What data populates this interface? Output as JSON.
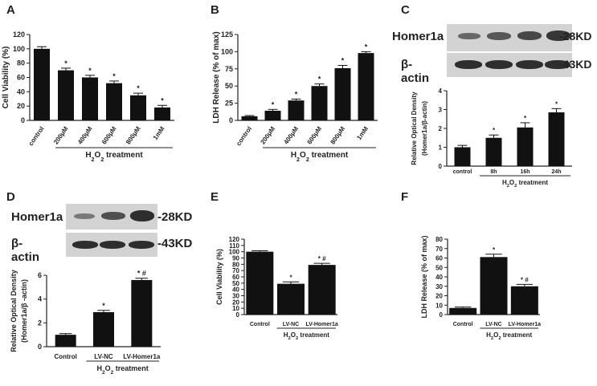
{
  "panels": {
    "A": "A",
    "B": "B",
    "C": "C",
    "D": "D",
    "E": "E",
    "F": "F"
  },
  "blots": {
    "C": {
      "protein": "Homer1a",
      "loading": "β-actin",
      "protein_kd": "-28KD",
      "loading_kd": "-43KD"
    },
    "D": {
      "protein": "Homer1a",
      "loading": "β-actin",
      "protein_kd": "-28KD",
      "loading_kd": "-43KD"
    }
  },
  "chart_data": [
    {
      "id": "A",
      "type": "bar",
      "ylabel": "Cell Viability (%)",
      "ylim": [
        0,
        120
      ],
      "yticks": [
        0,
        20,
        40,
        60,
        80,
        100,
        120
      ],
      "categories": [
        "control",
        "200μM",
        "400μM",
        "600μM",
        "800μM",
        "1mM"
      ],
      "values": [
        100,
        70,
        60,
        52,
        35,
        18
      ],
      "errors": [
        3,
        3,
        3,
        3,
        3,
        3
      ],
      "marks": [
        "",
        "*",
        "*",
        "*",
        "*",
        "*"
      ],
      "group_label": "H2O2 treatment",
      "group_from": 1,
      "group_to": 5,
      "rotated": true
    },
    {
      "id": "B",
      "type": "bar",
      "ylabel": "LDH Release (% of max)",
      "ylim": [
        0,
        125
      ],
      "yticks": [
        0,
        25,
        50,
        75,
        100,
        125
      ],
      "categories": [
        "control",
        "200μM",
        "400μM",
        "600μM",
        "800μM",
        "1mM"
      ],
      "values": [
        6,
        14,
        29,
        50,
        76,
        98
      ],
      "errors": [
        1,
        2,
        2,
        3,
        4,
        2
      ],
      "marks": [
        "",
        "*",
        "*",
        "*",
        "*",
        "*"
      ],
      "group_label": "H2O2 treatment",
      "group_from": 1,
      "group_to": 5,
      "rotated": true
    },
    {
      "id": "C",
      "type": "bar",
      "ylabel": "Relative Optical Density",
      "ylabel2": "(Homer1a/β-actin)",
      "ylim": [
        0,
        4
      ],
      "yticks": [
        0,
        1,
        2,
        3,
        4
      ],
      "categories": [
        "control",
        "8h",
        "16h",
        "24h"
      ],
      "values": [
        1.0,
        1.5,
        2.05,
        2.85
      ],
      "errors": [
        0.1,
        0.15,
        0.25,
        0.2
      ],
      "marks": [
        "",
        "*",
        "*",
        "*"
      ],
      "group_label": "H2O2 treatment",
      "group_from": 1,
      "group_to": 3,
      "rotated": false
    },
    {
      "id": "D",
      "type": "bar",
      "ylabel": "Relative Optical Density",
      "ylabel2": "(Homer1a/β -actin)",
      "ylim": [
        0,
        6
      ],
      "yticks": [
        0,
        2,
        4,
        6
      ],
      "categories": [
        "Control",
        "LV-NC",
        "LV-Homer1a"
      ],
      "values": [
        1.0,
        2.9,
        5.6
      ],
      "errors": [
        0.1,
        0.15,
        0.15
      ],
      "marks": [
        "",
        "*",
        "* #"
      ],
      "group_label": "H2O2 treatment",
      "group_from": 1,
      "group_to": 2,
      "rotated": false
    },
    {
      "id": "E",
      "type": "bar",
      "ylabel": "Cell Viability (%)",
      "ylim": [
        0,
        120
      ],
      "yticks": [
        0,
        10,
        20,
        30,
        40,
        50,
        60,
        70,
        80,
        90,
        100,
        110,
        120
      ],
      "categories": [
        "Control",
        "LV-NC",
        "LV-Homer1a"
      ],
      "values": [
        100,
        49,
        79
      ],
      "errors": [
        1.5,
        3,
        2.5
      ],
      "marks": [
        "",
        "*",
        "* #"
      ],
      "group_label": "H2O2 treatment",
      "group_from": 1,
      "group_to": 2,
      "rotated": false
    },
    {
      "id": "F",
      "type": "bar",
      "ylabel": "LDH Release (% of max)",
      "ylim": [
        0,
        80
      ],
      "yticks": [
        0,
        10,
        20,
        30,
        40,
        50,
        60,
        70,
        80
      ],
      "categories": [
        "Control",
        "LV-NC",
        "LV-Homer1a"
      ],
      "values": [
        7,
        61,
        30
      ],
      "errors": [
        1,
        3,
        2
      ],
      "marks": [
        "",
        "*",
        "* #"
      ],
      "group_label": "H 2 O 2 treatment",
      "group_from": 1,
      "group_to": 2,
      "rotated": false
    }
  ]
}
